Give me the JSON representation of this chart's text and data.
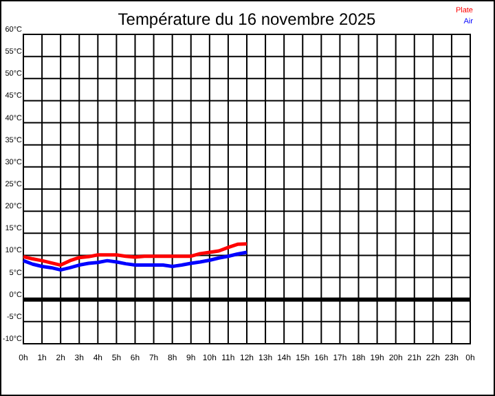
{
  "chart_data": {
    "type": "line",
    "title": "Température du 16 novembre 2025",
    "x": [
      "2025-11-16T00:00",
      "2025-11-16T00:30",
      "2025-11-16T01:00",
      "2025-11-16T01:30",
      "2025-11-16T02:00",
      "2025-11-16T02:30",
      "2025-11-16T03:00",
      "2025-11-16T03:30",
      "2025-11-16T04:00",
      "2025-11-16T04:30",
      "2025-11-16T05:00",
      "2025-11-16T05:30",
      "2025-11-16T06:00",
      "2025-11-16T06:30",
      "2025-11-16T07:00",
      "2025-11-16T07:30",
      "2025-11-16T08:00",
      "2025-11-16T08:30",
      "2025-11-16T09:00",
      "2025-11-16T09:30",
      "2025-11-16T10:00",
      "2025-11-16T10:30",
      "2025-11-16T11:00",
      "2025-11-16T11:30",
      "2025-11-16T12:00"
    ],
    "series": [
      {
        "name": "Plate",
        "color": "#ff0000",
        "values": [
          9.7,
          9.2,
          8.8,
          8.3,
          7.8,
          8.8,
          9.5,
          9.7,
          10.1,
          10.1,
          10.1,
          9.8,
          9.6,
          9.8,
          9.8,
          9.8,
          9.8,
          9.8,
          9.8,
          10.4,
          10.7,
          11.0,
          11.8,
          12.5,
          12.6
        ]
      },
      {
        "name": "Air",
        "color": "#0000ff",
        "values": [
          8.8,
          8.0,
          7.5,
          7.2,
          6.7,
          7.2,
          7.8,
          8.2,
          8.4,
          8.8,
          8.5,
          8.1,
          7.8,
          7.8,
          7.8,
          7.8,
          7.5,
          7.8,
          8.2,
          8.5,
          8.9,
          9.4,
          9.8,
          10.3,
          10.7
        ]
      }
    ],
    "xlim": [
      "2025-11-16T00:00",
      "2025-11-17T00:00"
    ],
    "xticks": [
      {
        "value": "2025-11-16T00:00",
        "label": "0h"
      },
      {
        "value": "2025-11-16T01:00",
        "label": "1h"
      },
      {
        "value": "2025-11-16T02:00",
        "label": "2h"
      },
      {
        "value": "2025-11-16T03:00",
        "label": "3h"
      },
      {
        "value": "2025-11-16T04:00",
        "label": "4h"
      },
      {
        "value": "2025-11-16T05:00",
        "label": "5h"
      },
      {
        "value": "2025-11-16T06:00",
        "label": "6h"
      },
      {
        "value": "2025-11-16T07:00",
        "label": "7h"
      },
      {
        "value": "2025-11-16T08:00",
        "label": "8h"
      },
      {
        "value": "2025-11-16T09:00",
        "label": "9h"
      },
      {
        "value": "2025-11-16T10:00",
        "label": "10h"
      },
      {
        "value": "2025-11-16T11:00",
        "label": "11h"
      },
      {
        "value": "2025-11-16T12:00",
        "label": "12h"
      },
      {
        "value": "2025-11-16T13:00",
        "label": "13h"
      },
      {
        "value": "2025-11-16T14:00",
        "label": "14h"
      },
      {
        "value": "2025-11-16T15:00",
        "label": "15h"
      },
      {
        "value": "2025-11-16T16:00",
        "label": "16h"
      },
      {
        "value": "2025-11-16T17:00",
        "label": "17h"
      },
      {
        "value": "2025-11-16T18:00",
        "label": "18h"
      },
      {
        "value": "2025-11-16T19:00",
        "label": "19h"
      },
      {
        "value": "2025-11-16T20:00",
        "label": "20h"
      },
      {
        "value": "2025-11-16T21:00",
        "label": "21h"
      },
      {
        "value": "2025-11-16T22:00",
        "label": "22h"
      },
      {
        "value": "2025-11-16T23:00",
        "label": "23h"
      },
      {
        "value": "2025-11-17T00:00",
        "label": "0h"
      }
    ],
    "ylim": [
      -10,
      60
    ],
    "yticks": [
      {
        "value": -10,
        "label": "-10°C"
      },
      {
        "value": -5,
        "label": "-5°C"
      },
      {
        "value": 0,
        "label": "0°C"
      },
      {
        "value": 5,
        "label": "5°C"
      },
      {
        "value": 10,
        "label": "10°C"
      },
      {
        "value": 15,
        "label": "15°C"
      },
      {
        "value": 20,
        "label": "20°C"
      },
      {
        "value": 25,
        "label": "25°C"
      },
      {
        "value": 30,
        "label": "30°C"
      },
      {
        "value": 35,
        "label": "35°C"
      },
      {
        "value": 40,
        "label": "40°C"
      },
      {
        "value": 45,
        "label": "45°C"
      },
      {
        "value": 50,
        "label": "50°C"
      },
      {
        "value": 55,
        "label": "55°C"
      },
      {
        "value": 60,
        "label": "60°C"
      }
    ],
    "ref_lines": [
      {
        "axis": "y",
        "value": 0,
        "color": "#000000"
      }
    ],
    "grid": true,
    "legend": "top right",
    "marker": "none",
    "line_style": "solid"
  }
}
